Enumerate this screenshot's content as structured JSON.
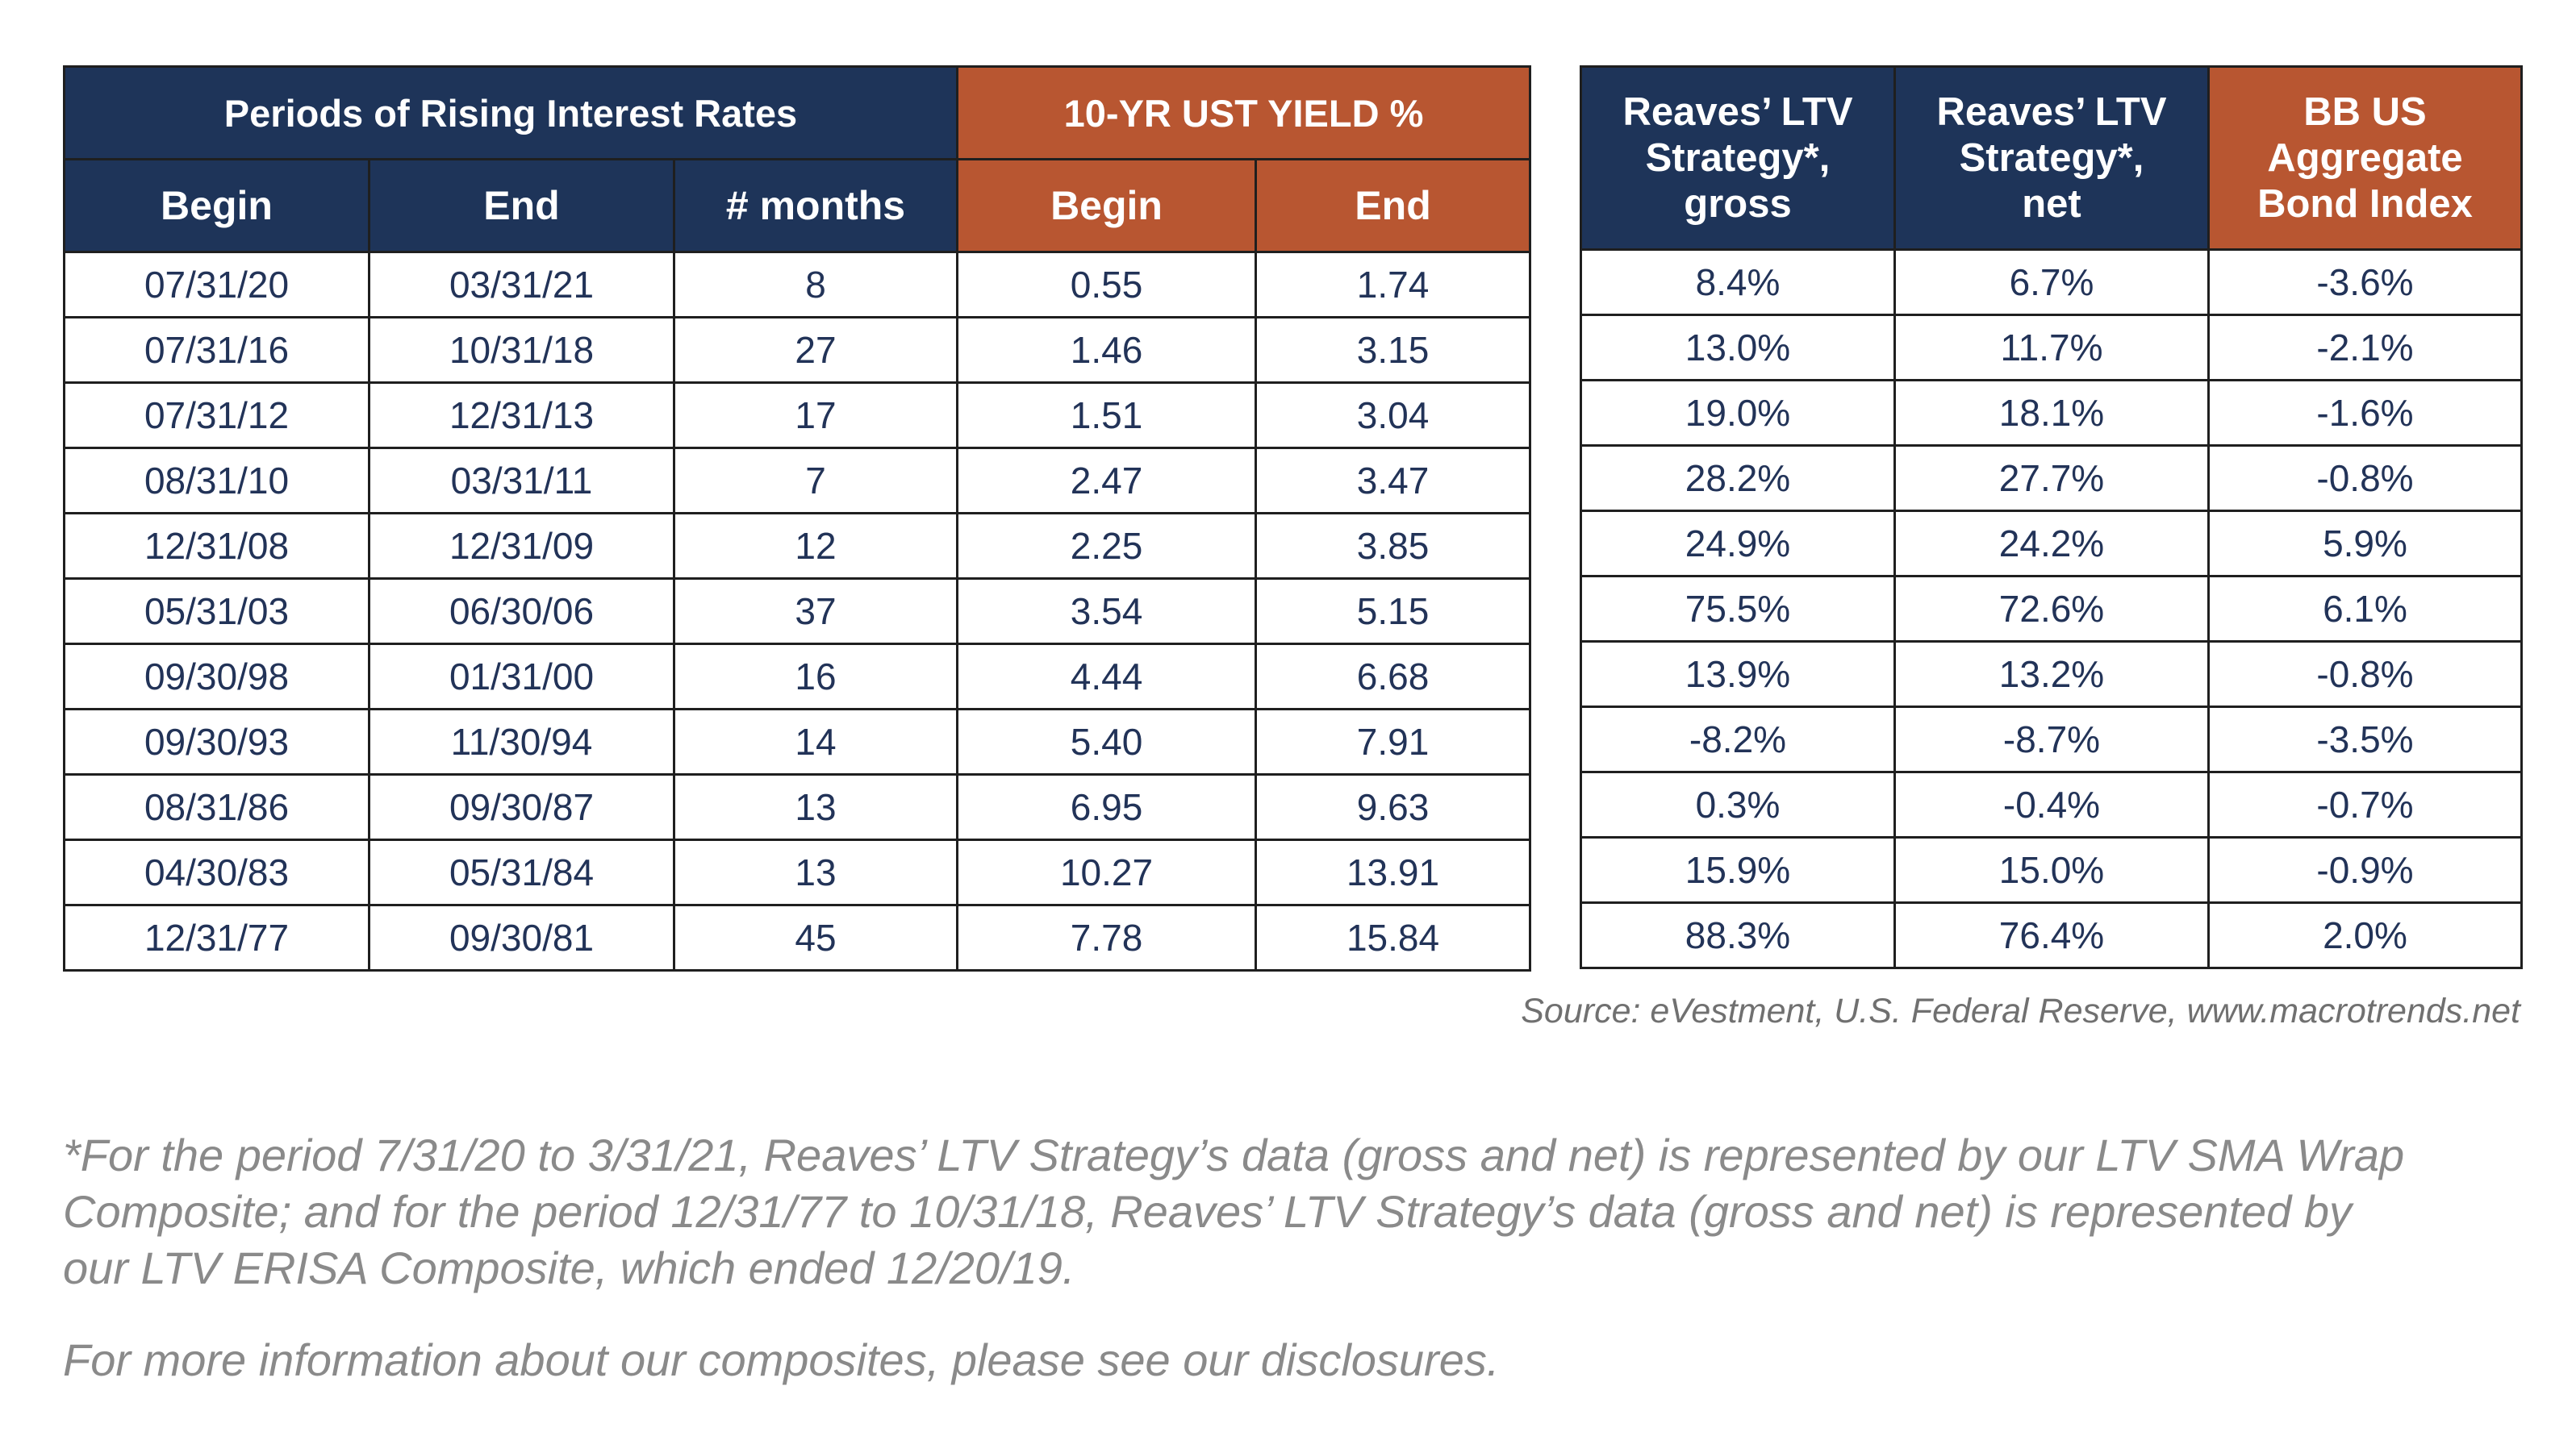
{
  "table_left": {
    "group_headers": [
      "Periods of Rising Interest Rates",
      "10-YR UST YIELD %"
    ],
    "sub_headers": [
      "Begin",
      "End",
      "# months",
      "Begin",
      "End"
    ],
    "rows": [
      [
        "07/31/20",
        "03/31/21",
        "8",
        "0.55",
        "1.74"
      ],
      [
        "07/31/16",
        "10/31/18",
        "27",
        "1.46",
        "3.15"
      ],
      [
        "07/31/12",
        "12/31/13",
        "17",
        "1.51",
        "3.04"
      ],
      [
        "08/31/10",
        "03/31/11",
        "7",
        "2.47",
        "3.47"
      ],
      [
        "12/31/08",
        "12/31/09",
        "12",
        "2.25",
        "3.85"
      ],
      [
        "05/31/03",
        "06/30/06",
        "37",
        "3.54",
        "5.15"
      ],
      [
        "09/30/98",
        "01/31/00",
        "16",
        "4.44",
        "6.68"
      ],
      [
        "09/30/93",
        "11/30/94",
        "14",
        "5.40",
        "7.91"
      ],
      [
        "08/31/86",
        "09/30/87",
        "13",
        "6.95",
        "9.63"
      ],
      [
        "04/30/83",
        "05/31/84",
        "13",
        "10.27",
        "13.91"
      ],
      [
        "12/31/77",
        "09/30/81",
        "45",
        "7.78",
        "15.84"
      ]
    ]
  },
  "table_right": {
    "headers": [
      "Reaves’ LTV\nStrategy*,\ngross",
      "Reaves’ LTV\nStrategy*,\nnet",
      "BB US\nAggregate\nBond Index"
    ],
    "rows": [
      [
        "8.4%",
        "6.7%",
        "-3.6%"
      ],
      [
        "13.0%",
        "11.7%",
        "-2.1%"
      ],
      [
        "19.0%",
        "18.1%",
        "-1.6%"
      ],
      [
        "28.2%",
        "27.7%",
        "-0.8%"
      ],
      [
        "24.9%",
        "24.2%",
        "5.9%"
      ],
      [
        "75.5%",
        "72.6%",
        "6.1%"
      ],
      [
        "13.9%",
        "13.2%",
        "-0.8%"
      ],
      [
        "-8.2%",
        "-8.7%",
        "-3.5%"
      ],
      [
        "0.3%",
        "-0.4%",
        "-0.7%"
      ],
      [
        "15.9%",
        "15.0%",
        "-0.9%"
      ],
      [
        "88.3%",
        "76.4%",
        "2.0%"
      ]
    ]
  },
  "source": "Source: eVestment, U.S. Federal Reserve, www.macrotrends.net",
  "footnote": "*For the period 7/31/20 to 3/31/21, Reaves’ LTV Strategy’s data (gross and net) is represented by our LTV SMA Wrap\nComposite; and for the period 12/31/77 to 10/31/18, Reaves’ LTV Strategy’s data (gross and net) is represented by\nour LTV ERISA Composite, which ended 12/20/19.",
  "more_info": "For more information about our composites, please see our disclosures.",
  "colors": {
    "navy": "#1e3459",
    "rust": "#b85631",
    "cell_text": "#223358"
  }
}
